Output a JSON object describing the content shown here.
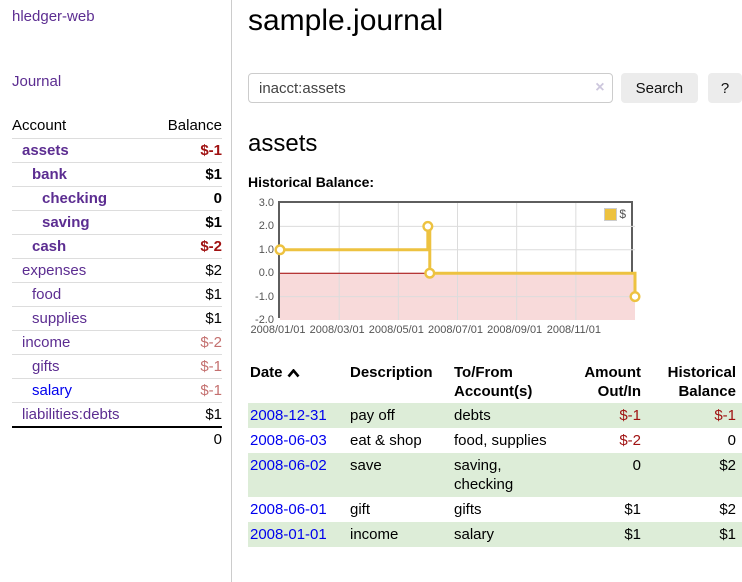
{
  "app": {
    "brand": "hledger-web",
    "nav_journal": "Journal"
  },
  "sidebar": {
    "header": {
      "account": "Account",
      "balance": "Balance"
    },
    "accounts": [
      {
        "name": "assets",
        "balance": "$-1",
        "indent": 1,
        "bold": true,
        "neg": "strong",
        "link_color": "purple"
      },
      {
        "name": "bank",
        "balance": "$1",
        "indent": 2,
        "bold": true,
        "neg": "none",
        "link_color": "purple"
      },
      {
        "name": "checking",
        "balance": "0",
        "indent": 3,
        "bold": true,
        "neg": "none",
        "link_color": "purple"
      },
      {
        "name": "saving",
        "balance": "$1",
        "indent": 3,
        "bold": true,
        "neg": "none",
        "link_color": "purple"
      },
      {
        "name": "cash",
        "balance": "$-2",
        "indent": 2,
        "bold": true,
        "neg": "strong",
        "link_color": "purple"
      },
      {
        "name": "expenses",
        "balance": "$2",
        "indent": 1,
        "bold": false,
        "neg": "none",
        "link_color": "purple"
      },
      {
        "name": "food",
        "balance": "$1",
        "indent": 2,
        "bold": false,
        "neg": "none",
        "link_color": "purple"
      },
      {
        "name": "supplies",
        "balance": "$1",
        "indent": 2,
        "bold": false,
        "neg": "none",
        "link_color": "purple"
      },
      {
        "name": "income",
        "balance": "$-2",
        "indent": 1,
        "bold": false,
        "neg": "muted",
        "link_color": "purple"
      },
      {
        "name": "gifts",
        "balance": "$-1",
        "indent": 2,
        "bold": false,
        "neg": "muted",
        "link_color": "purple"
      },
      {
        "name": "salary",
        "balance": "$-1",
        "indent": 2,
        "bold": false,
        "neg": "muted",
        "link_color": "blue"
      },
      {
        "name": "liabilities:debts",
        "balance": "$1",
        "indent": 1,
        "bold": false,
        "neg": "none",
        "link_color": "purple"
      }
    ],
    "total": "0"
  },
  "header": {
    "title": "sample.journal"
  },
  "search": {
    "value": "inacct:assets",
    "clear_icon": "×",
    "button": "Search",
    "help_button": "?"
  },
  "account_page": {
    "title": "assets",
    "chart_label": "Historical Balance:"
  },
  "chart_data": {
    "type": "line",
    "step": true,
    "title": "Historical Balance",
    "series": [
      {
        "name": "$",
        "color": "#edc240",
        "points": [
          [
            "2008-01-01",
            1
          ],
          [
            "2008-06-01",
            2
          ],
          [
            "2008-06-03",
            0
          ],
          [
            "2008-12-31",
            -1
          ]
        ]
      }
    ],
    "x_ticks": [
      "2008/01/01",
      "2008/03/01",
      "2008/05/01",
      "2008/07/01",
      "2008/09/01",
      "2008/11/01"
    ],
    "y_ticks": [
      3.0,
      2.0,
      1.0,
      0.0,
      -1.0,
      -2.0
    ],
    "ylim": [
      -2,
      3
    ],
    "x_range": [
      "2008-01-01",
      "2008-12-31"
    ],
    "grid": true,
    "legend_position": "top-right",
    "negative_region": {
      "fill": "#f8dada",
      "zero_line": "#a00000"
    }
  },
  "register": {
    "columns": {
      "date": "Date",
      "description": "Description",
      "accounts": "To/From\nAccount(s)",
      "amount": "Amount\nOut/In",
      "balance": "Historical\nBalance"
    },
    "sort": {
      "column": "Date",
      "direction": "ascending"
    },
    "rows": [
      {
        "date": "2008-12-31",
        "description": "pay off",
        "accounts": "debts",
        "amount": "$-1",
        "balance": "$-1",
        "amount_neg": true,
        "balance_neg": true,
        "shaded": true
      },
      {
        "date": "2008-06-03",
        "description": "eat & shop",
        "accounts": "food, supplies",
        "amount": "$-2",
        "balance": "0",
        "amount_neg": true,
        "balance_neg": false,
        "shaded": false
      },
      {
        "date": "2008-06-02",
        "description": "save",
        "accounts": "saving,\nchecking",
        "amount": "0",
        "balance": "$2",
        "amount_neg": false,
        "balance_neg": false,
        "shaded": true
      },
      {
        "date": "2008-06-01",
        "description": "gift",
        "accounts": "gifts",
        "amount": "$1",
        "balance": "$2",
        "amount_neg": false,
        "balance_neg": false,
        "shaded": false
      },
      {
        "date": "2008-01-01",
        "description": "income",
        "accounts": "salary",
        "amount": "$1",
        "balance": "$1",
        "amount_neg": false,
        "balance_neg": false,
        "shaded": true
      }
    ]
  },
  "colors": {
    "link_purple": "#5c2d91",
    "link_blue": "#0000ee",
    "negative_strong": "#a01212",
    "negative_muted": "#c4706f",
    "row_shade_green": "#ddedd8",
    "series_yellow": "#edc240",
    "negative_zone_pink": "#f8dada"
  }
}
